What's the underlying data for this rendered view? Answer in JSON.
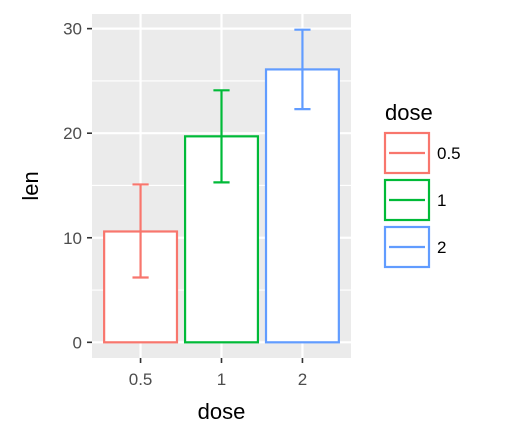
{
  "chart_data": {
    "type": "bar",
    "title": "",
    "xlabel": "dose",
    "ylabel": "len",
    "categories": [
      "0.5",
      "1",
      "2"
    ],
    "values": [
      10.6,
      19.7,
      26.1
    ],
    "error_bars": [
      {
        "low": 6.2,
        "high": 15.1
      },
      {
        "low": 15.3,
        "high": 24.1
      },
      {
        "low": 22.3,
        "high": 29.9
      }
    ],
    "colors": [
      "#F8766D",
      "#00BA38",
      "#619CFF"
    ],
    "bar_fill": "#ffffff",
    "ylim": [
      -1.5,
      31.4
    ],
    "yticks": [
      "0",
      "10",
      "20",
      "30"
    ],
    "grid": true,
    "panel_background": "#ebebeb",
    "legend": {
      "title": "dose",
      "placement": "right",
      "entries": [
        "0.5",
        "1",
        "2"
      ]
    }
  }
}
